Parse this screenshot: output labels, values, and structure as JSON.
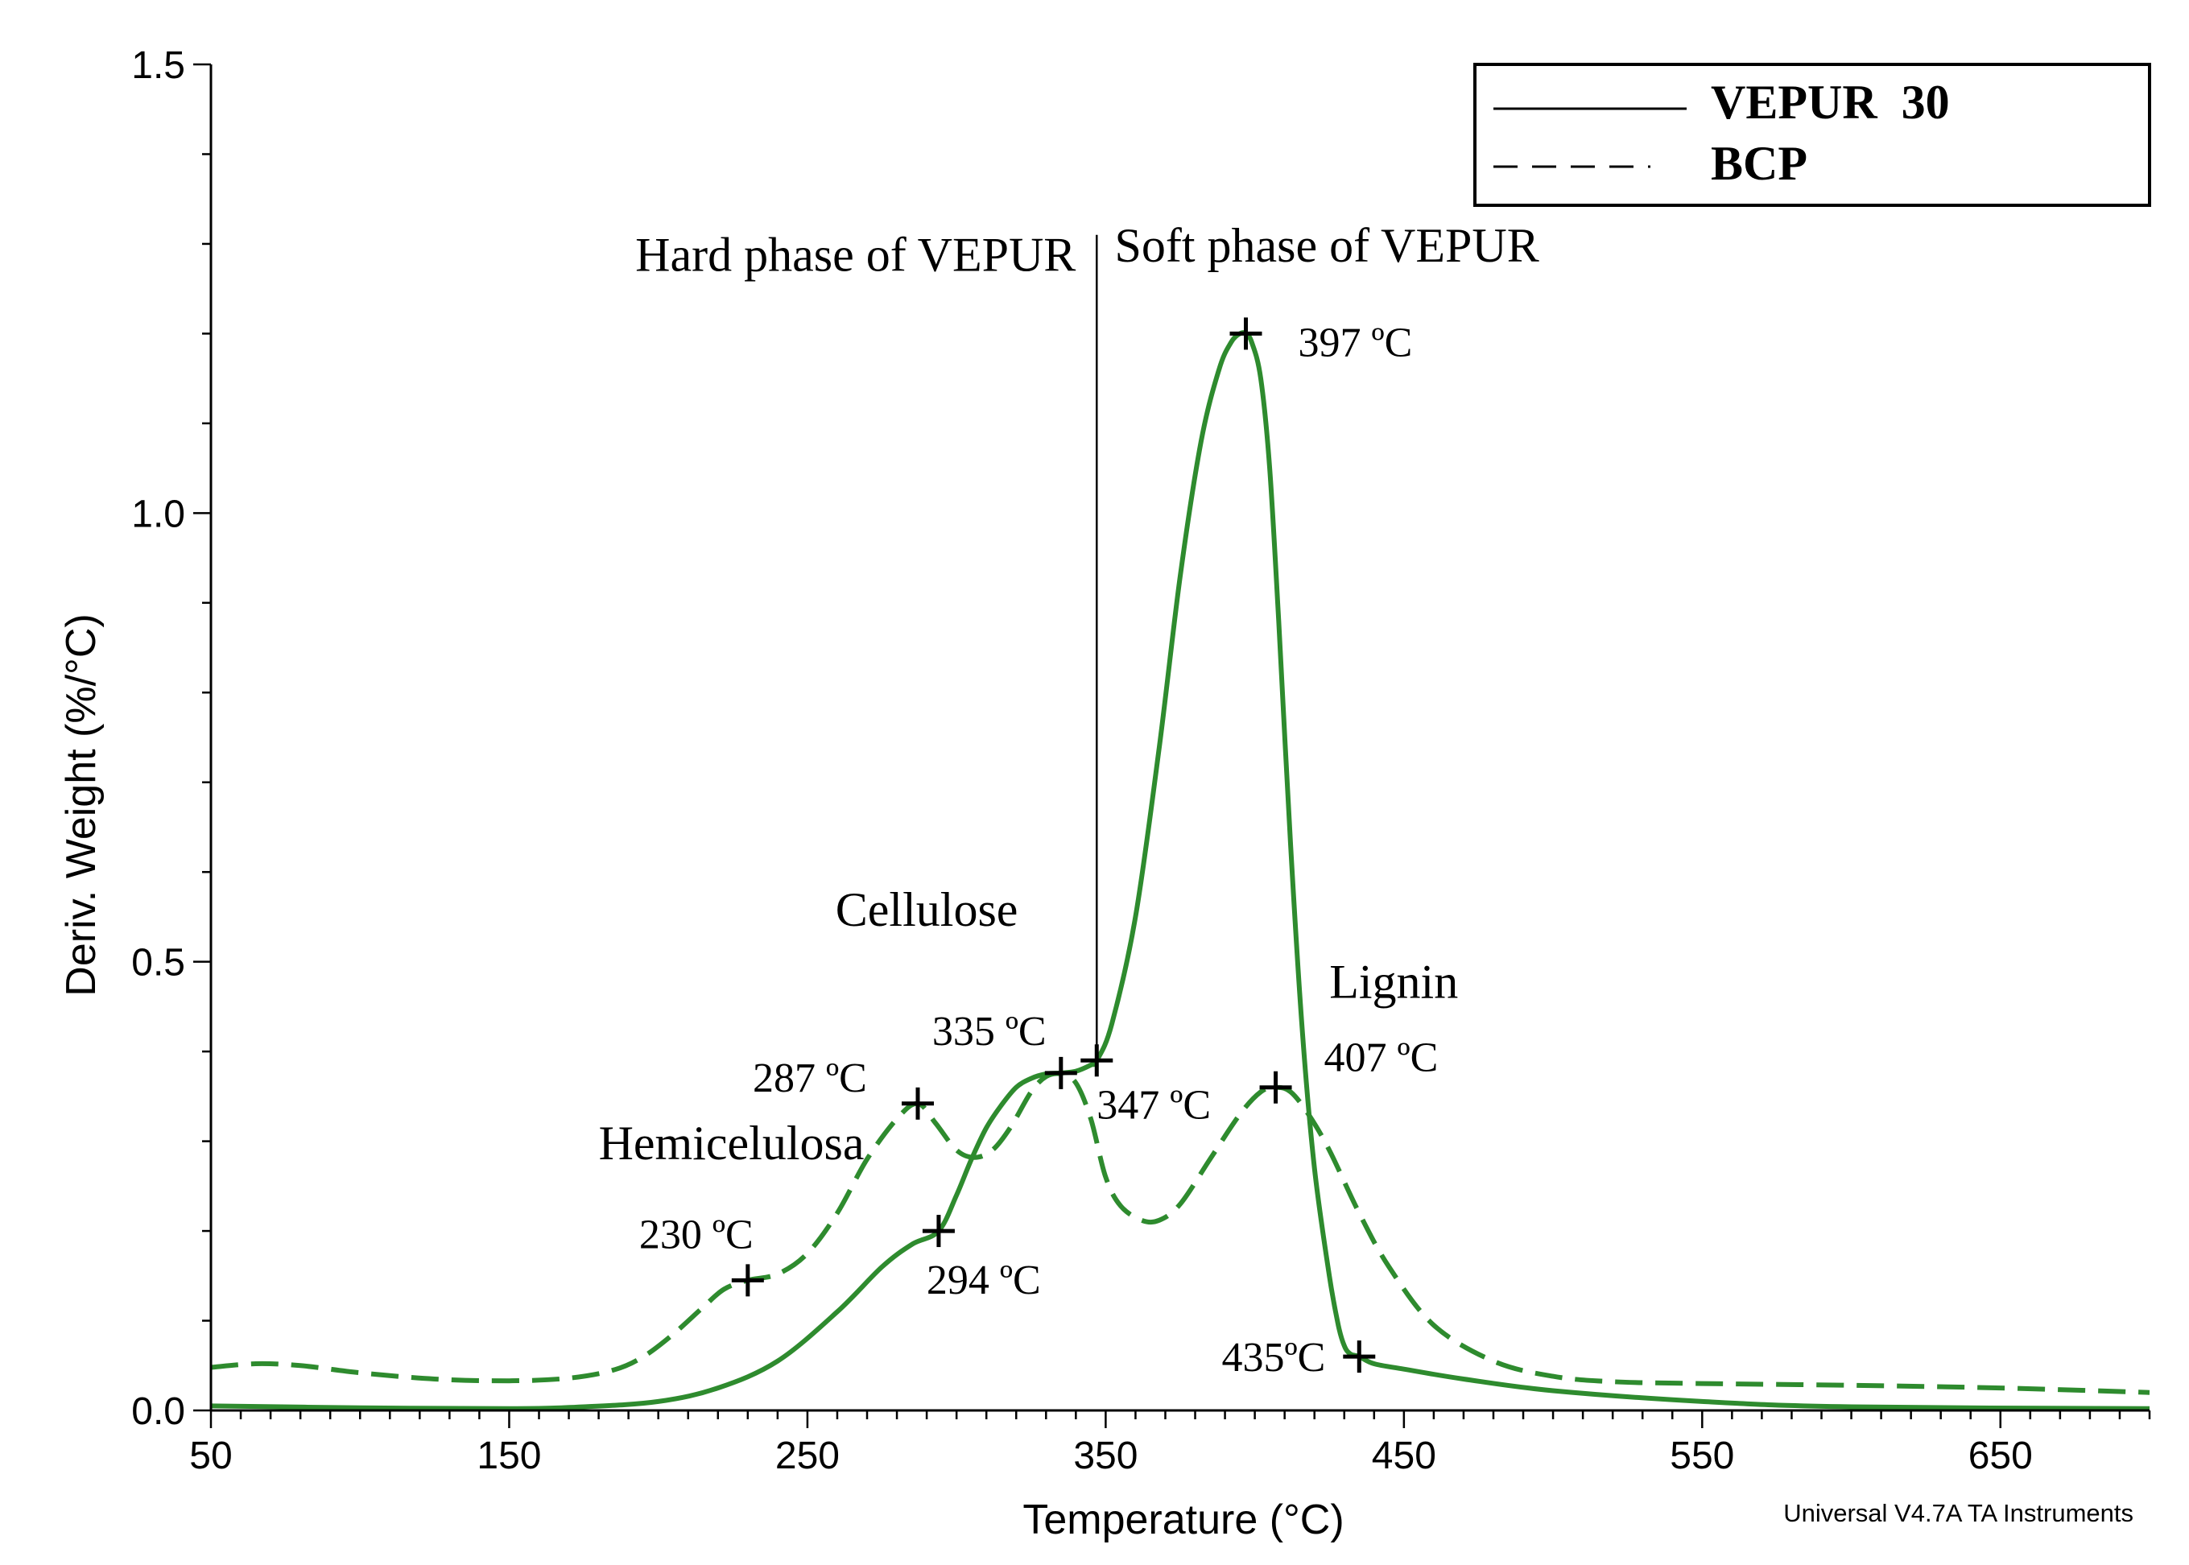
{
  "chart_data": {
    "type": "line",
    "title": "",
    "xlabel": "Temperature (°C)",
    "ylabel": "Deriv. Weight (%/°C)",
    "xlim": [
      50,
      700
    ],
    "ylim": [
      0,
      1.5
    ],
    "grid": false,
    "x_ticks": [
      50,
      150,
      250,
      350,
      450,
      550,
      650
    ],
    "x_tick_labels": [
      "50",
      "150",
      "250",
      "350",
      "450",
      "550",
      "650"
    ],
    "y_ticks": [
      0.0,
      0.5,
      1.0,
      1.5
    ],
    "y_tick_labels": [
      "0.0",
      "0.5",
      "1.0",
      "1.5"
    ],
    "credit": "Universal V4.7A TA Instruments",
    "legend": {
      "position": "top-right",
      "entries": [
        {
          "label": "VEPUR  30",
          "style": "solid"
        },
        {
          "label": "BCP",
          "style": "dashed"
        }
      ]
    },
    "line_color": "#2e8b2e",
    "phase_divider_x": 347,
    "region_labels": [
      {
        "text": "Hard phase of VEPUR",
        "anchor_x": 340,
        "y": 1.27,
        "align": "end"
      },
      {
        "text": "Soft phase of VEPUR",
        "anchor_x": 353,
        "y": 1.28,
        "align": "start"
      },
      {
        "text": "Cellulose",
        "anchor_x": 290,
        "y": 0.54,
        "align": "middle"
      },
      {
        "text": "Hemicelulosa",
        "anchor_x": 180,
        "y": 0.28,
        "align": "start"
      },
      {
        "text": "Lignin",
        "anchor_x": 425,
        "y": 0.46,
        "align": "start"
      }
    ],
    "series": [
      {
        "name": "VEPUR  30",
        "style": "solid",
        "x": [
          50,
          100,
          150,
          175,
          200,
          220,
          240,
          260,
          275,
          285,
          294,
          300,
          305,
          310,
          315,
          320,
          325,
          330,
          335,
          340,
          345,
          347,
          352,
          360,
          368,
          375,
          382,
          388,
          392,
          395,
          397,
          399,
          402,
          405,
          408,
          412,
          416,
          420,
          425,
          428,
          430,
          432,
          435,
          440,
          450,
          470,
          500,
          550,
          600,
          700
        ],
        "values": [
          0.005,
          0.003,
          0.002,
          0.004,
          0.01,
          0.025,
          0.055,
          0.11,
          0.16,
          0.185,
          0.2,
          0.24,
          0.28,
          0.315,
          0.34,
          0.36,
          0.37,
          0.375,
          0.376,
          0.378,
          0.385,
          0.39,
          0.43,
          0.55,
          0.74,
          0.93,
          1.08,
          1.16,
          1.19,
          1.2,
          1.2,
          1.19,
          1.15,
          1.05,
          0.88,
          0.63,
          0.42,
          0.27,
          0.15,
          0.095,
          0.072,
          0.063,
          0.06,
          0.052,
          0.046,
          0.035,
          0.022,
          0.01,
          0.004,
          0.002
        ]
      },
      {
        "name": "BCP",
        "style": "dashed",
        "x": [
          50,
          65,
          80,
          100,
          125,
          150,
          170,
          185,
          195,
          205,
          215,
          222,
          230,
          240,
          250,
          260,
          270,
          280,
          287,
          293,
          300,
          306,
          312,
          318,
          325,
          330,
          335,
          340,
          345,
          350,
          355,
          362,
          368,
          375,
          385,
          395,
          402,
          407,
          412,
          418,
          425,
          435,
          445,
          460,
          480,
          500,
          520,
          550,
          600,
          650,
          700
        ],
        "values": [
          0.048,
          0.052,
          0.05,
          0.042,
          0.035,
          0.033,
          0.036,
          0.045,
          0.06,
          0.085,
          0.115,
          0.135,
          0.145,
          0.152,
          0.175,
          0.22,
          0.28,
          0.325,
          0.342,
          0.32,
          0.29,
          0.282,
          0.29,
          0.315,
          0.355,
          0.372,
          0.375,
          0.365,
          0.325,
          0.26,
          0.228,
          0.212,
          0.212,
          0.23,
          0.28,
          0.33,
          0.355,
          0.36,
          0.355,
          0.33,
          0.29,
          0.22,
          0.16,
          0.095,
          0.055,
          0.038,
          0.032,
          0.03,
          0.028,
          0.025,
          0.02
        ]
      }
    ],
    "peaks": [
      {
        "series": "VEPUR  30",
        "x": 294,
        "y": 0.2,
        "label": "294 ºC",
        "label_dx": -15,
        "label_dy": 78,
        "align": "start"
      },
      {
        "series": "VEPUR  30",
        "x": 335,
        "y": 0.376,
        "label": "335 ºC",
        "label_dx": -160,
        "label_dy": -35,
        "align": "start"
      },
      {
        "series": "VEPUR  30",
        "x": 347,
        "y": 0.39,
        "label": "347 ºC",
        "label_dx": 0,
        "label_dy": 72,
        "align": "start"
      },
      {
        "series": "VEPUR  30",
        "x": 397,
        "y": 1.2,
        "label": "397 ºC",
        "label_dx": 65,
        "label_dy": 28,
        "align": "start"
      },
      {
        "series": "VEPUR  30",
        "x": 435,
        "y": 0.06,
        "label": "435ºC",
        "label_dx": -42,
        "label_dy": 18,
        "align": "end"
      },
      {
        "series": "BCP",
        "x": 230,
        "y": 0.145,
        "label": "230 ºC",
        "label_dx": -135,
        "label_dy": -40,
        "align": "start"
      },
      {
        "series": "BCP",
        "x": 287,
        "y": 0.342,
        "label": "287 ºC",
        "label_dx": -205,
        "label_dy": -15,
        "align": "start"
      },
      {
        "series": "BCP",
        "x": 407,
        "y": 0.36,
        "label": "407 ºC",
        "label_dx": 60,
        "label_dy": -20,
        "align": "start"
      }
    ]
  }
}
